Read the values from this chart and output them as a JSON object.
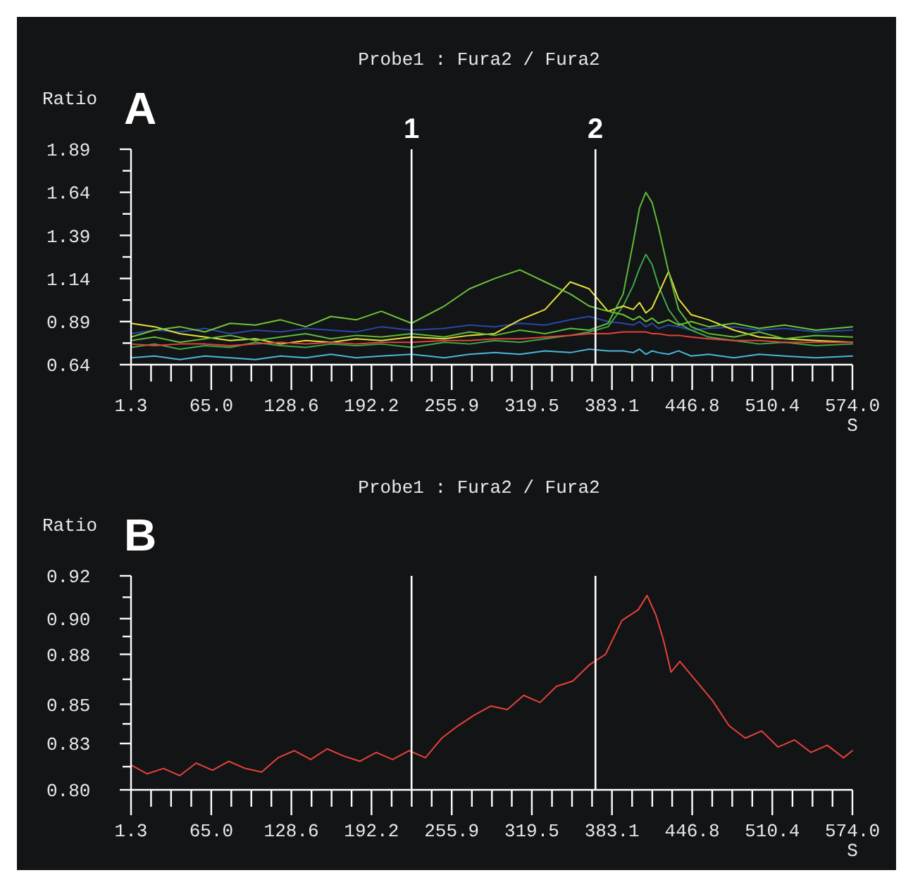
{
  "chart_data": [
    {
      "type": "line",
      "title": "Probe1 : Fura2 / Fura2",
      "ylabel": "Ratio",
      "xlabel": "S",
      "annotations": [
        "A",
        "1",
        "2"
      ],
      "xlim": [
        1.3,
        574
      ],
      "xticks": [
        {
          "value": 1.3,
          "label": "1.3"
        },
        {
          "value": 17.2,
          "label": null
        },
        {
          "value": 33.1,
          "label": null
        },
        {
          "value": 49.1,
          "label": null
        },
        {
          "value": 65.0,
          "label": "65.0"
        },
        {
          "value": 80.9,
          "label": null
        },
        {
          "value": 96.8,
          "label": null
        },
        {
          "value": 112.7,
          "label": null
        },
        {
          "value": 128.6,
          "label": "128.6"
        },
        {
          "value": 144.6,
          "label": null
        },
        {
          "value": 160.5,
          "label": null
        },
        {
          "value": 176.4,
          "label": null
        },
        {
          "value": 192.2,
          "label": "192.2"
        },
        {
          "value": 208.2,
          "label": null
        },
        {
          "value": 224.1,
          "label": null
        },
        {
          "value": 240.0,
          "label": null
        },
        {
          "value": 255.9,
          "label": "255.9"
        },
        {
          "value": 271.9,
          "label": null
        },
        {
          "value": 287.8,
          "label": null
        },
        {
          "value": 303.6,
          "label": null
        },
        {
          "value": 319.5,
          "label": "319.5"
        },
        {
          "value": 335.5,
          "label": null
        },
        {
          "value": 351.4,
          "label": null
        },
        {
          "value": 367.3,
          "label": null
        },
        {
          "value": 383.1,
          "label": "383.1"
        },
        {
          "value": 399.1,
          "label": null
        },
        {
          "value": 415.1,
          "label": null
        },
        {
          "value": 430.9,
          "label": null
        },
        {
          "value": 446.8,
          "label": "446.8"
        },
        {
          "value": 462.7,
          "label": null
        },
        {
          "value": 478.6,
          "label": null
        },
        {
          "value": 494.5,
          "label": null
        },
        {
          "value": 510.4,
          "label": "510.4"
        },
        {
          "value": 526.4,
          "label": null
        },
        {
          "value": 542.3,
          "label": null
        },
        {
          "value": 558.2,
          "label": null
        },
        {
          "value": 574.0,
          "label": "574.0"
        }
      ],
      "ylim": [
        0.64,
        1.89
      ],
      "yticks": [
        0.64,
        {
          "value": 0.765,
          "label": null
        },
        0.89,
        {
          "value": 1.015,
          "label": null
        },
        1.14,
        {
          "value": 1.265,
          "label": null
        },
        1.39,
        {
          "value": 1.515,
          "label": null
        },
        1.64,
        {
          "value": 1.765,
          "label": null
        },
        1.89
      ],
      "ref_lines": [
        {
          "axis": "x",
          "value": 224,
          "color": "#ffffff"
        },
        {
          "axis": "x",
          "value": 370,
          "color": "#ffffff"
        }
      ],
      "x": [
        1.3,
        20,
        40,
        60,
        80,
        100,
        120,
        140,
        160,
        180,
        200,
        224,
        250,
        270,
        290,
        310,
        330,
        350,
        365,
        380,
        392,
        400,
        405,
        410,
        415,
        420,
        428,
        436,
        446,
        460,
        480,
        500,
        520,
        545,
        574
      ],
      "series": [
        {
          "color": "#4ab8d8",
          "values": [
            0.68,
            0.69,
            0.67,
            0.69,
            0.68,
            0.67,
            0.69,
            0.68,
            0.7,
            0.68,
            0.69,
            0.7,
            0.68,
            0.7,
            0.71,
            0.7,
            0.72,
            0.71,
            0.73,
            0.72,
            0.72,
            0.71,
            0.73,
            0.7,
            0.72,
            0.71,
            0.7,
            0.72,
            0.69,
            0.7,
            0.68,
            0.7,
            0.69,
            0.68,
            0.69
          ]
        },
        {
          "color": "#2848a8",
          "values": [
            0.82,
            0.84,
            0.83,
            0.85,
            0.82,
            0.84,
            0.83,
            0.85,
            0.84,
            0.83,
            0.86,
            0.84,
            0.85,
            0.87,
            0.86,
            0.88,
            0.87,
            0.9,
            0.92,
            0.89,
            0.88,
            0.87,
            0.89,
            0.86,
            0.88,
            0.85,
            0.87,
            0.86,
            0.84,
            0.85,
            0.86,
            0.84,
            0.85,
            0.83,
            0.84
          ]
        },
        {
          "color": "#3ea84a",
          "values": [
            0.74,
            0.76,
            0.73,
            0.75,
            0.74,
            0.77,
            0.75,
            0.74,
            0.76,
            0.75,
            0.76,
            0.74,
            0.77,
            0.76,
            0.78,
            0.77,
            0.79,
            0.81,
            0.83,
            0.86,
            0.98,
            1.1,
            1.2,
            1.28,
            1.22,
            1.1,
            0.96,
            0.88,
            0.84,
            0.8,
            0.78,
            0.76,
            0.77,
            0.75,
            0.76
          ]
        },
        {
          "color": "#e8e03a",
          "values": [
            0.88,
            0.86,
            0.82,
            0.8,
            0.78,
            0.79,
            0.76,
            0.78,
            0.77,
            0.79,
            0.78,
            0.8,
            0.79,
            0.81,
            0.82,
            0.9,
            0.96,
            1.12,
            1.08,
            0.95,
            0.98,
            0.96,
            1.0,
            0.94,
            0.97,
            1.05,
            1.18,
            1.02,
            0.93,
            0.9,
            0.84,
            0.8,
            0.79,
            0.78,
            0.77
          ]
        },
        {
          "color": "#6cc43a",
          "values": [
            0.8,
            0.84,
            0.86,
            0.83,
            0.88,
            0.87,
            0.9,
            0.86,
            0.92,
            0.9,
            0.95,
            0.88,
            0.98,
            1.08,
            1.14,
            1.19,
            1.12,
            1.05,
            0.98,
            0.95,
            0.93,
            0.9,
            0.92,
            0.89,
            0.91,
            0.88,
            0.9,
            0.87,
            0.89,
            0.86,
            0.88,
            0.85,
            0.87,
            0.84,
            0.86
          ]
        },
        {
          "color": "#5dbb3a",
          "values": [
            0.78,
            0.8,
            0.77,
            0.79,
            0.81,
            0.78,
            0.8,
            0.82,
            0.79,
            0.81,
            0.8,
            0.82,
            0.8,
            0.83,
            0.81,
            0.84,
            0.82,
            0.85,
            0.84,
            0.88,
            1.05,
            1.35,
            1.55,
            1.64,
            1.58,
            1.44,
            1.18,
            0.96,
            0.86,
            0.82,
            0.8,
            0.83,
            0.79,
            0.81,
            0.8
          ]
        },
        {
          "color": "#e8413a",
          "values": [
            0.76,
            0.75,
            0.76,
            0.76,
            0.75,
            0.76,
            0.77,
            0.76,
            0.77,
            0.76,
            0.77,
            0.77,
            0.78,
            0.78,
            0.79,
            0.79,
            0.8,
            0.81,
            0.82,
            0.82,
            0.83,
            0.83,
            0.83,
            0.83,
            0.82,
            0.82,
            0.81,
            0.81,
            0.8,
            0.79,
            0.78,
            0.78,
            0.77,
            0.77,
            0.77
          ]
        }
      ]
    },
    {
      "type": "line",
      "title": "Probe1 : Fura2 / Fura2",
      "ylabel": "Ratio",
      "xlabel": "S",
      "annotations": [
        "B"
      ],
      "xlim": [
        1.3,
        574
      ],
      "xticks": [
        {
          "value": 1.3,
          "label": "1.3"
        },
        {
          "value": 17.2,
          "label": null
        },
        {
          "value": 33.1,
          "label": null
        },
        {
          "value": 49.1,
          "label": null
        },
        {
          "value": 65.0,
          "label": "65.0"
        },
        {
          "value": 80.9,
          "label": null
        },
        {
          "value": 96.8,
          "label": null
        },
        {
          "value": 112.7,
          "label": null
        },
        {
          "value": 128.6,
          "label": "128.6"
        },
        {
          "value": 144.6,
          "label": null
        },
        {
          "value": 160.5,
          "label": null
        },
        {
          "value": 176.4,
          "label": null
        },
        {
          "value": 192.2,
          "label": "192.2"
        },
        {
          "value": 208.2,
          "label": null
        },
        {
          "value": 224.1,
          "label": null
        },
        {
          "value": 240.0,
          "label": null
        },
        {
          "value": 255.9,
          "label": "255.9"
        },
        {
          "value": 271.9,
          "label": null
        },
        {
          "value": 287.8,
          "label": null
        },
        {
          "value": 303.6,
          "label": null
        },
        {
          "value": 319.5,
          "label": "319.5"
        },
        {
          "value": 335.5,
          "label": null
        },
        {
          "value": 351.4,
          "label": null
        },
        {
          "value": 367.3,
          "label": null
        },
        {
          "value": 383.1,
          "label": "383.1"
        },
        {
          "value": 399.1,
          "label": null
        },
        {
          "value": 415.1,
          "label": null
        },
        {
          "value": 430.9,
          "label": null
        },
        {
          "value": 446.8,
          "label": "446.8"
        },
        {
          "value": 462.7,
          "label": null
        },
        {
          "value": 478.6,
          "label": null
        },
        {
          "value": 494.5,
          "label": null
        },
        {
          "value": 510.4,
          "label": "510.4"
        },
        {
          "value": 526.4,
          "label": null
        },
        {
          "value": 542.3,
          "label": null
        },
        {
          "value": 558.2,
          "label": null
        },
        {
          "value": 574.0,
          "label": "574.0"
        }
      ],
      "ylim": [
        0.8,
        0.92
      ],
      "yticks": [
        {
          "value": 0.8,
          "label": "0.80"
        },
        {
          "value": 0.813,
          "label": null
        },
        {
          "value": 0.826,
          "label": "0.83"
        },
        {
          "value": 0.837,
          "label": null
        },
        {
          "value": 0.848,
          "label": "0.85"
        },
        {
          "value": 0.862,
          "label": null
        },
        {
          "value": 0.876,
          "label": "0.88"
        },
        {
          "value": 0.886,
          "label": null
        },
        {
          "value": 0.896,
          "label": "0.90"
        },
        {
          "value": 0.908,
          "label": null
        },
        {
          "value": 0.92,
          "label": "0.92"
        }
      ],
      "ref_lines": [
        {
          "axis": "x",
          "value": 224,
          "color": "#ffffff"
        },
        {
          "axis": "x",
          "value": 370,
          "color": "#ffffff"
        }
      ],
      "x": [
        1.3,
        14,
        27,
        40,
        53,
        66,
        79,
        92,
        105,
        118,
        131,
        144,
        157,
        170,
        183,
        196,
        209,
        222,
        235,
        248,
        261,
        274,
        287,
        300,
        313,
        326,
        339,
        352,
        365,
        378,
        391,
        404,
        411,
        418,
        424,
        430,
        437,
        450,
        463,
        476,
        489,
        502,
        515,
        528,
        541,
        554,
        567,
        574
      ],
      "series": [
        {
          "color": "#e8413a",
          "values": [
            0.814,
            0.809,
            0.812,
            0.808,
            0.815,
            0.811,
            0.816,
            0.812,
            0.81,
            0.818,
            0.822,
            0.817,
            0.823,
            0.819,
            0.816,
            0.821,
            0.817,
            0.822,
            0.818,
            0.829,
            0.836,
            0.842,
            0.847,
            0.845,
            0.853,
            0.849,
            0.858,
            0.861,
            0.87,
            0.876,
            0.895,
            0.901,
            0.909,
            0.898,
            0.884,
            0.866,
            0.872,
            0.861,
            0.85,
            0.836,
            0.829,
            0.833,
            0.824,
            0.828,
            0.821,
            0.825,
            0.818,
            0.822
          ]
        }
      ]
    }
  ]
}
